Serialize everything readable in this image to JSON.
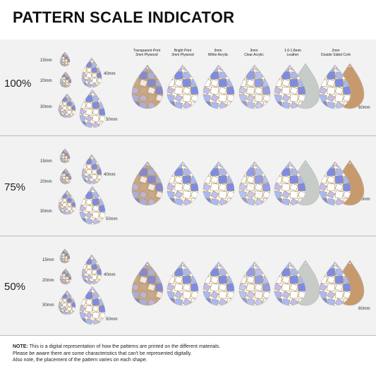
{
  "title": "PATTERN SCALE INDICATOR",
  "materials": [
    {
      "label": "Transparent Print\n3mm Plywood"
    },
    {
      "label": "Bright Print\n3mm Plywood"
    },
    {
      "label": "3mm\nWhite Acrylic"
    },
    {
      "label": "3mm\nClear Acrylic"
    },
    {
      "label": "1.6-1.8mm\nLeather"
    },
    {
      "label": "2mm\nDouble Sided Cork"
    }
  ],
  "scales": [
    {
      "percent": "100%",
      "sizes": [
        "15mm",
        "20mm",
        "30mm",
        "40mm",
        "50mm"
      ],
      "right_size": "60mm"
    },
    {
      "percent": "75%",
      "sizes": [
        "15mm",
        "20mm",
        "30mm",
        "40mm",
        "50mm"
      ],
      "right_size": "60mm"
    },
    {
      "percent": "50%",
      "sizes": [
        "15mm",
        "20mm",
        "30mm",
        "40mm",
        "50mm"
      ],
      "right_size": "60mm"
    }
  ],
  "note": {
    "label": "NOTE:",
    "line1": " This is a digital representation of how the patterns are printed on the different materials.",
    "line2": "Please be aware there are some characteristics that can't be represented digitally.",
    "line3": "Also note, the placement of the pattern varies on each shape."
  },
  "colors": {
    "wood": "#c9a98a",
    "leather": "#c8ccc9",
    "cork": "#c79a6e",
    "pattern_blue": "#6f7fe0",
    "pattern_lilac": "#b9b7f0",
    "pattern_line": "#b59a6a"
  }
}
